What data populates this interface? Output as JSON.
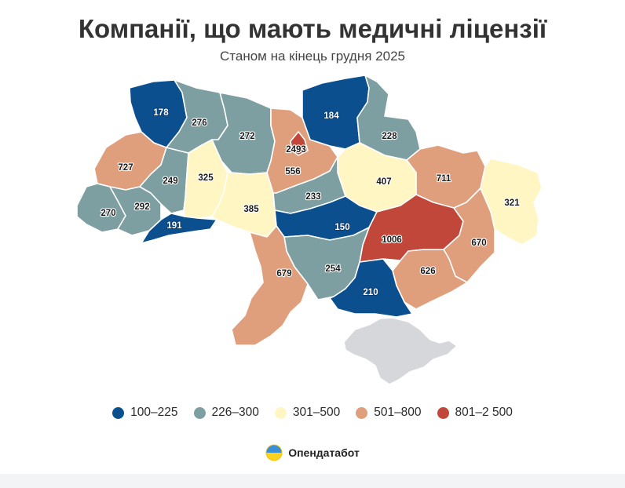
{
  "title": "Компанії, що мають медичні ліцензії",
  "subtitle": "Станом на кінець грудня 2025",
  "colors": {
    "bin1": "#0b4f8f",
    "bin2": "#7d9fa1",
    "bin3": "#fff6c4",
    "bin4": "#e09f7c",
    "bin5": "#c2473b",
    "crimea": "#d5d7da"
  },
  "legend": [
    {
      "label": "100–225",
      "color": "#0b4f8f"
    },
    {
      "label": "226–300",
      "color": "#7d9fa1"
    },
    {
      "label": "301–500",
      "color": "#fff6c4"
    },
    {
      "label": "501–800",
      "color": "#e09f7c"
    },
    {
      "label": "801–2 500",
      "color": "#c2473b"
    }
  ],
  "regions": [
    {
      "id": "volyn",
      "value": "178",
      "bin": 1
    },
    {
      "id": "rivne",
      "value": "276",
      "bin": 2
    },
    {
      "id": "zhytomyr",
      "value": "272",
      "bin": 2
    },
    {
      "id": "kyiv-oblast",
      "value": "556",
      "bin": 4
    },
    {
      "id": "kyiv-city",
      "value": "2493",
      "bin": 5
    },
    {
      "id": "chernihiv",
      "value": "184",
      "bin": 1
    },
    {
      "id": "sumy",
      "value": "228",
      "bin": 2
    },
    {
      "id": "lviv",
      "value": "727",
      "bin": 4
    },
    {
      "id": "ternopil",
      "value": "249",
      "bin": 2
    },
    {
      "id": "khmelnytskyi",
      "value": "325",
      "bin": 3
    },
    {
      "id": "zakarpattia",
      "value": "270",
      "bin": 2
    },
    {
      "id": "ivano-frankivsk",
      "value": "292",
      "bin": 2
    },
    {
      "id": "chernivtsi",
      "value": "191",
      "bin": 1
    },
    {
      "id": "vinnytsia",
      "value": "385",
      "bin": 3
    },
    {
      "id": "cherkasy",
      "value": "233",
      "bin": 2
    },
    {
      "id": "poltava",
      "value": "407",
      "bin": 3
    },
    {
      "id": "kharkiv",
      "value": "711",
      "bin": 4
    },
    {
      "id": "luhansk",
      "value": "321",
      "bin": 3
    },
    {
      "id": "kirovohrad",
      "value": "150",
      "bin": 1
    },
    {
      "id": "dnipropetrovsk",
      "value": "1006",
      "bin": 5
    },
    {
      "id": "donetsk",
      "value": "670",
      "bin": 4
    },
    {
      "id": "odesa",
      "value": "679",
      "bin": 4
    },
    {
      "id": "mykolaiv",
      "value": "254",
      "bin": 2
    },
    {
      "id": "zaporizhzhia",
      "value": "626",
      "bin": 4
    },
    {
      "id": "kherson",
      "value": "210",
      "bin": 1
    }
  ],
  "brand": {
    "name": "Опендатабот",
    "logo_icon": "opendatabot-logo-icon"
  }
}
